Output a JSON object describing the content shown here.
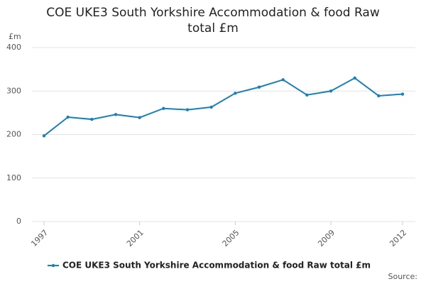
{
  "chart_data": {
    "type": "line",
    "title": "COE UKE3 South Yorkshire Accommodation & food Raw total £m",
    "y_label": "£m",
    "source": "Source:",
    "x": [
      1997,
      1998,
      1999,
      2000,
      2001,
      2002,
      2003,
      2004,
      2005,
      2006,
      2007,
      2008,
      2009,
      2010,
      2011,
      2012
    ],
    "series": [
      {
        "name": "COE UKE3 South Yorkshire Accommodation & food Raw total £m",
        "color": "#1a80b6",
        "values": [
          197,
          240,
          235,
          246,
          239,
          260,
          257,
          263,
          295,
          309,
          326,
          291,
          300,
          330,
          289,
          293
        ]
      }
    ],
    "xlim": [
      1997,
      2012
    ],
    "xticks": [
      1997,
      2001,
      2005,
      2009,
      2012
    ],
    "ylim": [
      0,
      400
    ],
    "yticks": [
      0,
      100,
      200,
      300,
      400
    ],
    "grid": true,
    "legend": "bottom"
  }
}
